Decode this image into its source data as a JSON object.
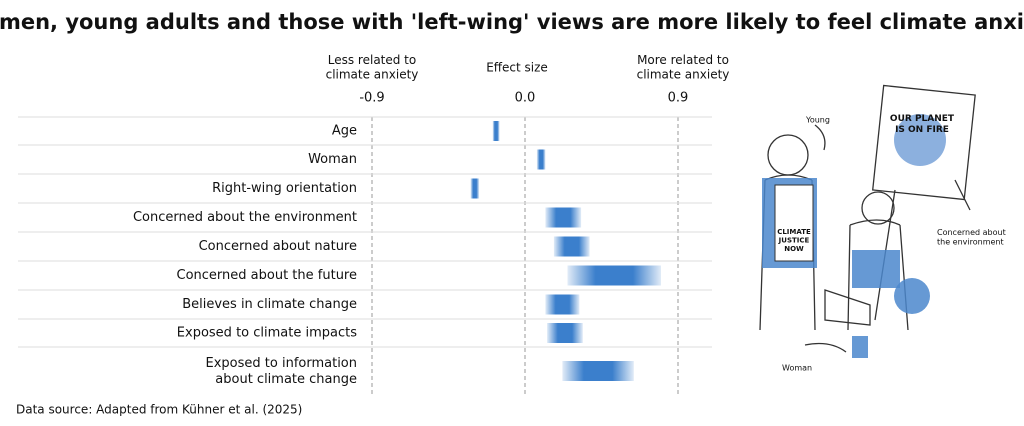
{
  "chart_data": {
    "type": "range",
    "title": "Women, young adults and those with 'left-wing' views are more likely to feel climate anxiety",
    "axis_title": "Effect size",
    "left_label": "Less related to\nclimate anxiety",
    "right_label": "More related to\nclimate anxiety",
    "categories": [
      "Age",
      "Woman",
      "Right-wing orientation",
      "Concerned about the environment",
      "Concerned about nature",
      "Concerned about the future",
      "Believes in climate change",
      "Exposed to climate impacts",
      "Exposed to information\nabout climate change"
    ],
    "series": [
      {
        "color": "#3b7fcc",
        "low": [
          -0.19,
          0.07,
          -0.32,
          0.12,
          0.17,
          0.25,
          0.12,
          0.13,
          0.22
        ],
        "high": [
          -0.15,
          0.12,
          -0.27,
          0.33,
          0.38,
          0.8,
          0.32,
          0.34,
          0.64
        ]
      }
    ],
    "xlim": [
      -0.9,
      0.9
    ],
    "xticks": [
      -0.9,
      {
        "value": 0,
        "label": "0.0"
      },
      0.9
    ],
    "source": "Data source: Adapted from Kühner et al. (2025)"
  },
  "illustration": {
    "young": "Young",
    "environment": "Concerned about\nthe environment",
    "woman": "Woman",
    "sign": "OUR PLANET\nIS ON FIRE",
    "shirt": "CLIMATE\nJUSTICE\nNOW"
  }
}
